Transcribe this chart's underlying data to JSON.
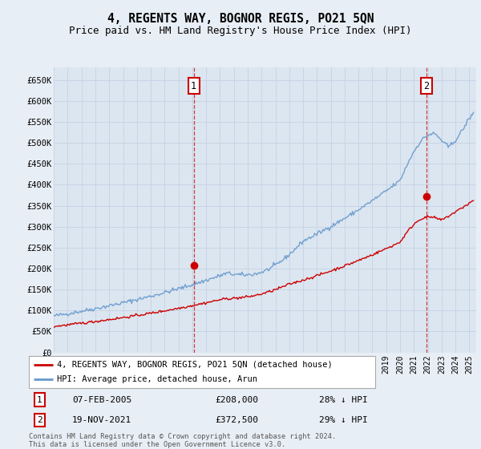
{
  "title": "4, REGENTS WAY, BOGNOR REGIS, PO21 5QN",
  "subtitle": "Price paid vs. HM Land Registry's House Price Index (HPI)",
  "title_fontsize": 10.5,
  "subtitle_fontsize": 9,
  "background_color": "#e8eef5",
  "plot_bg_color": "#dce6f0",
  "grid_color": "#c8d4e8",
  "ylim": [
    0,
    680000
  ],
  "yticks": [
    0,
    50000,
    100000,
    150000,
    200000,
    250000,
    300000,
    350000,
    400000,
    450000,
    500000,
    550000,
    600000,
    650000
  ],
  "ytick_labels": [
    "£0",
    "£50K",
    "£100K",
    "£150K",
    "£200K",
    "£250K",
    "£300K",
    "£350K",
    "£400K",
    "£450K",
    "£500K",
    "£550K",
    "£600K",
    "£650K"
  ],
  "xlim_start": 1995.0,
  "xlim_end": 2025.5,
  "red_line_color": "#cc0000",
  "blue_line_color": "#6699cc",
  "marker1_x": 2005.1,
  "marker1_y": 208000,
  "marker2_x": 2021.89,
  "marker2_y": 372500,
  "sale1_date": "07-FEB-2005",
  "sale1_price": "£208,000",
  "sale1_hpi": "28% ↓ HPI",
  "sale2_date": "19-NOV-2021",
  "sale2_price": "£372,500",
  "sale2_hpi": "29% ↓ HPI",
  "legend_line1": "4, REGENTS WAY, BOGNOR REGIS, PO21 5QN (detached house)",
  "legend_line2": "HPI: Average price, detached house, Arun",
  "footnote": "Contains HM Land Registry data © Crown copyright and database right 2024.\nThis data is licensed under the Open Government Licence v3.0."
}
